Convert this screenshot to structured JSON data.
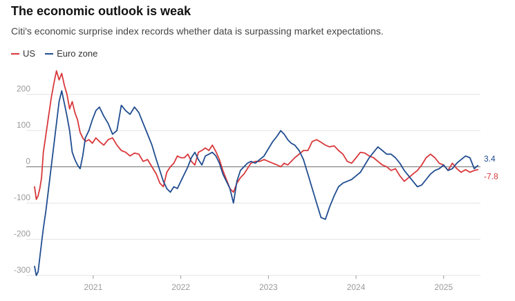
{
  "header": {
    "title": "The economic outlook is weak",
    "subtitle": "Citi's economic surprise index records whether data is surpassing market expectations."
  },
  "colors": {
    "us": "#d8373a",
    "euro": "#1f4c8f",
    "grid": "#e3e3e3",
    "zero": "#6d6d6d",
    "tick": "#9a9a9a"
  },
  "chart_data": {
    "type": "line",
    "title": "The economic outlook is weak",
    "subtitle": "Citi's economic surprise index records whether data is surpassing market expectations.",
    "xlabel": "",
    "ylabel": "",
    "x_range": [
      2020.33,
      2025.42
    ],
    "ylim": [
      -300,
      270
    ],
    "y_ticks": [
      200,
      100,
      0,
      -100,
      -200,
      -300
    ],
    "y_tick_labels": [
      "200",
      "100",
      "0",
      "-100",
      "-200",
      "-300"
    ],
    "x_ticks": [
      2021,
      2022,
      2023,
      2024,
      2025
    ],
    "x_tick_labels": [
      "2021",
      "2022",
      "2023",
      "2024",
      "2025"
    ],
    "grid": true,
    "legend_position": "top-left",
    "series": [
      {
        "name": "US",
        "color": "#d8373a",
        "end_label": "-7.8",
        "points": [
          [
            2020.33,
            -55
          ],
          [
            2020.35,
            -90
          ],
          [
            2020.37,
            -80
          ],
          [
            2020.39,
            -60
          ],
          [
            2020.41,
            -30
          ],
          [
            2020.43,
            40
          ],
          [
            2020.46,
            90
          ],
          [
            2020.49,
            140
          ],
          [
            2020.52,
            190
          ],
          [
            2020.55,
            230
          ],
          [
            2020.58,
            265
          ],
          [
            2020.61,
            240
          ],
          [
            2020.64,
            258
          ],
          [
            2020.67,
            225
          ],
          [
            2020.7,
            200
          ],
          [
            2020.73,
            160
          ],
          [
            2020.76,
            180
          ],
          [
            2020.79,
            150
          ],
          [
            2020.82,
            130
          ],
          [
            2020.85,
            95
          ],
          [
            2020.88,
            80
          ],
          [
            2020.91,
            70
          ],
          [
            2020.95,
            75
          ],
          [
            2020.99,
            65
          ],
          [
            2021.03,
            80
          ],
          [
            2021.07,
            70
          ],
          [
            2021.12,
            60
          ],
          [
            2021.17,
            75
          ],
          [
            2021.22,
            80
          ],
          [
            2021.27,
            60
          ],
          [
            2021.32,
            45
          ],
          [
            2021.37,
            40
          ],
          [
            2021.42,
            30
          ],
          [
            2021.47,
            38
          ],
          [
            2021.52,
            35
          ],
          [
            2021.57,
            15
          ],
          [
            2021.62,
            20
          ],
          [
            2021.67,
            0
          ],
          [
            2021.72,
            -20
          ],
          [
            2021.76,
            -45
          ],
          [
            2021.8,
            -55
          ],
          [
            2021.84,
            -15
          ],
          [
            2021.88,
            0
          ],
          [
            2021.92,
            10
          ],
          [
            2021.96,
            30
          ],
          [
            2022.0,
            25
          ],
          [
            2022.04,
            25
          ],
          [
            2022.08,
            35
          ],
          [
            2022.12,
            15
          ],
          [
            2022.16,
            5
          ],
          [
            2022.2,
            40
          ],
          [
            2022.24,
            45
          ],
          [
            2022.28,
            52
          ],
          [
            2022.32,
            45
          ],
          [
            2022.36,
            60
          ],
          [
            2022.4,
            42
          ],
          [
            2022.44,
            20
          ],
          [
            2022.48,
            -10
          ],
          [
            2022.52,
            -35
          ],
          [
            2022.56,
            -60
          ],
          [
            2022.6,
            -70
          ],
          [
            2022.64,
            -45
          ],
          [
            2022.68,
            -30
          ],
          [
            2022.72,
            -20
          ],
          [
            2022.76,
            -5
          ],
          [
            2022.8,
            10
          ],
          [
            2022.85,
            15
          ],
          [
            2022.9,
            15
          ],
          [
            2022.95,
            20
          ],
          [
            2023.0,
            15
          ],
          [
            2023.05,
            10
          ],
          [
            2023.1,
            5
          ],
          [
            2023.14,
            0
          ],
          [
            2023.18,
            10
          ],
          [
            2023.22,
            5
          ],
          [
            2023.26,
            15
          ],
          [
            2023.3,
            25
          ],
          [
            2023.35,
            35
          ],
          [
            2023.4,
            45
          ],
          [
            2023.45,
            45
          ],
          [
            2023.5,
            70
          ],
          [
            2023.55,
            75
          ],
          [
            2023.6,
            68
          ],
          [
            2023.65,
            60
          ],
          [
            2023.7,
            55
          ],
          [
            2023.75,
            58
          ],
          [
            2023.8,
            45
          ],
          [
            2023.85,
            35
          ],
          [
            2023.9,
            15
          ],
          [
            2023.95,
            10
          ],
          [
            2024.0,
            25
          ],
          [
            2024.05,
            40
          ],
          [
            2024.1,
            38
          ],
          [
            2024.15,
            30
          ],
          [
            2024.2,
            25
          ],
          [
            2024.25,
            15
          ],
          [
            2024.3,
            5
          ],
          [
            2024.35,
            0
          ],
          [
            2024.4,
            -10
          ],
          [
            2024.45,
            -5
          ],
          [
            2024.5,
            -25
          ],
          [
            2024.55,
            -40
          ],
          [
            2024.6,
            -30
          ],
          [
            2024.65,
            -20
          ],
          [
            2024.7,
            -10
          ],
          [
            2024.75,
            5
          ],
          [
            2024.8,
            25
          ],
          [
            2024.85,
            35
          ],
          [
            2024.9,
            25
          ],
          [
            2024.95,
            10
          ],
          [
            2025.0,
            5
          ],
          [
            2025.05,
            -10
          ],
          [
            2025.1,
            10
          ],
          [
            2025.15,
            -5
          ],
          [
            2025.2,
            -15
          ],
          [
            2025.25,
            -8
          ],
          [
            2025.3,
            -15
          ],
          [
            2025.35,
            -10
          ],
          [
            2025.39,
            -7.8
          ]
        ]
      },
      {
        "name": "Euro zone",
        "color": "#1f4c8f",
        "end_label": "3.4",
        "points": [
          [
            2020.33,
            -275
          ],
          [
            2020.35,
            -300
          ],
          [
            2020.37,
            -290
          ],
          [
            2020.39,
            -250
          ],
          [
            2020.41,
            -210
          ],
          [
            2020.43,
            -170
          ],
          [
            2020.46,
            -120
          ],
          [
            2020.49,
            -60
          ],
          [
            2020.52,
            0
          ],
          [
            2020.55,
            60
          ],
          [
            2020.58,
            120
          ],
          [
            2020.61,
            180
          ],
          [
            2020.64,
            210
          ],
          [
            2020.67,
            175
          ],
          [
            2020.7,
            140
          ],
          [
            2020.73,
            100
          ],
          [
            2020.76,
            40
          ],
          [
            2020.79,
            20
          ],
          [
            2020.82,
            5
          ],
          [
            2020.85,
            -5
          ],
          [
            2020.88,
            30
          ],
          [
            2020.91,
            80
          ],
          [
            2020.95,
            100
          ],
          [
            2020.99,
            130
          ],
          [
            2021.03,
            155
          ],
          [
            2021.07,
            165
          ],
          [
            2021.12,
            140
          ],
          [
            2021.17,
            120
          ],
          [
            2021.22,
            90
          ],
          [
            2021.27,
            100
          ],
          [
            2021.32,
            170
          ],
          [
            2021.37,
            155
          ],
          [
            2021.42,
            145
          ],
          [
            2021.47,
            165
          ],
          [
            2021.52,
            150
          ],
          [
            2021.57,
            120
          ],
          [
            2021.62,
            90
          ],
          [
            2021.67,
            60
          ],
          [
            2021.72,
            20
          ],
          [
            2021.76,
            -10
          ],
          [
            2021.8,
            -40
          ],
          [
            2021.84,
            -60
          ],
          [
            2021.88,
            -70
          ],
          [
            2021.92,
            -55
          ],
          [
            2021.96,
            -60
          ],
          [
            2022.0,
            -40
          ],
          [
            2022.04,
            -20
          ],
          [
            2022.08,
            0
          ],
          [
            2022.12,
            25
          ],
          [
            2022.16,
            40
          ],
          [
            2022.2,
            20
          ],
          [
            2022.24,
            5
          ],
          [
            2022.28,
            30
          ],
          [
            2022.32,
            35
          ],
          [
            2022.36,
            40
          ],
          [
            2022.4,
            30
          ],
          [
            2022.44,
            10
          ],
          [
            2022.48,
            -20
          ],
          [
            2022.52,
            -40
          ],
          [
            2022.56,
            -60
          ],
          [
            2022.6,
            -100
          ],
          [
            2022.64,
            -40
          ],
          [
            2022.68,
            -10
          ],
          [
            2022.72,
            0
          ],
          [
            2022.76,
            10
          ],
          [
            2022.8,
            15
          ],
          [
            2022.85,
            10
          ],
          [
            2022.9,
            20
          ],
          [
            2022.95,
            30
          ],
          [
            2023.0,
            50
          ],
          [
            2023.05,
            70
          ],
          [
            2023.1,
            85
          ],
          [
            2023.14,
            100
          ],
          [
            2023.18,
            90
          ],
          [
            2023.22,
            75
          ],
          [
            2023.26,
            65
          ],
          [
            2023.3,
            60
          ],
          [
            2023.35,
            45
          ],
          [
            2023.4,
            20
          ],
          [
            2023.45,
            -20
          ],
          [
            2023.5,
            -60
          ],
          [
            2023.55,
            -100
          ],
          [
            2023.6,
            -140
          ],
          [
            2023.65,
            -145
          ],
          [
            2023.7,
            -110
          ],
          [
            2023.75,
            -80
          ],
          [
            2023.8,
            -55
          ],
          [
            2023.85,
            -45
          ],
          [
            2023.9,
            -40
          ],
          [
            2023.95,
            -35
          ],
          [
            2024.0,
            -25
          ],
          [
            2024.05,
            -15
          ],
          [
            2024.1,
            5
          ],
          [
            2024.15,
            25
          ],
          [
            2024.2,
            40
          ],
          [
            2024.25,
            55
          ],
          [
            2024.3,
            45
          ],
          [
            2024.35,
            35
          ],
          [
            2024.4,
            35
          ],
          [
            2024.45,
            25
          ],
          [
            2024.5,
            10
          ],
          [
            2024.55,
            -10
          ],
          [
            2024.6,
            -25
          ],
          [
            2024.65,
            -40
          ],
          [
            2024.7,
            -55
          ],
          [
            2024.75,
            -50
          ],
          [
            2024.8,
            -35
          ],
          [
            2024.85,
            -20
          ],
          [
            2024.9,
            -10
          ],
          [
            2024.95,
            -5
          ],
          [
            2025.0,
            5
          ],
          [
            2025.05,
            -10
          ],
          [
            2025.1,
            -5
          ],
          [
            2025.15,
            10
          ],
          [
            2025.2,
            20
          ],
          [
            2025.25,
            30
          ],
          [
            2025.3,
            25
          ],
          [
            2025.35,
            -5
          ],
          [
            2025.39,
            3.4
          ]
        ]
      }
    ]
  }
}
